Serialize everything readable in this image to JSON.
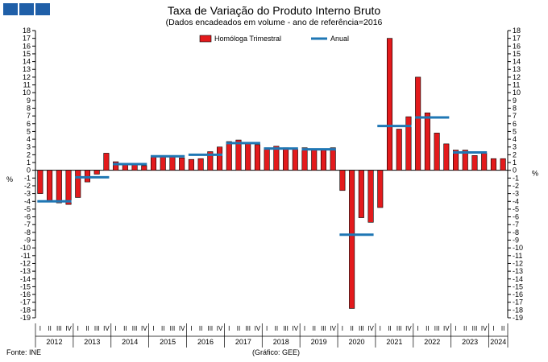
{
  "header": {
    "title": "Taxa de Variação do Produto Interno Bruto",
    "subtitle": "(Dados encadeados em volume - ano de referência=2016"
  },
  "footer": {
    "source": "Fonte: INE",
    "credit": "(Gráfico: GEE)"
  },
  "chart_data": {
    "type": "bar",
    "ylabel_left": "%",
    "ylabel_right": "%",
    "ylim": [
      -19,
      18
    ],
    "yticks": [
      18,
      17,
      16,
      15,
      14,
      13,
      12,
      11,
      10,
      9,
      8,
      7,
      6,
      5,
      4,
      3,
      2,
      1,
      0,
      -1,
      -2,
      -3,
      -4,
      -5,
      -6,
      -7,
      -8,
      -9,
      -10,
      -11,
      -12,
      -13,
      -14,
      -15,
      -16,
      -17,
      -18,
      -19
    ],
    "grid": false,
    "legend_position": "top-center",
    "colors": {
      "bar": "#e31a1c",
      "bar_edge": "#000000",
      "annual": "#1f77b4"
    },
    "quarter_labels": [
      "I",
      "II",
      "III",
      "IV"
    ],
    "years": [
      "2012",
      "2013",
      "2014",
      "2015",
      "2016",
      "2017",
      "2018",
      "2019",
      "2020",
      "2021",
      "2022",
      "2023",
      "2024"
    ],
    "series": [
      {
        "name": "Homóloga Trimestral",
        "kind": "bar",
        "values": [
          -3.0,
          -3.9,
          -4.2,
          -4.4,
          -3.5,
          -1.5,
          -0.5,
          2.2,
          1.1,
          0.9,
          0.9,
          0.6,
          1.9,
          1.9,
          1.9,
          1.6,
          1.4,
          1.5,
          2.4,
          3.0,
          3.7,
          3.9,
          3.5,
          3.3,
          2.9,
          3.1,
          2.9,
          2.7,
          2.9,
          2.7,
          2.6,
          2.9,
          -2.6,
          -17.8,
          -6.1,
          -6.7,
          -4.8,
          17.0,
          5.3,
          6.9,
          12.0,
          7.4,
          4.8,
          3.4,
          2.6,
          2.6,
          1.9,
          2.2,
          1.5,
          1.5
        ]
      },
      {
        "name": "Anual",
        "kind": "step",
        "values": [
          -4.0,
          -0.9,
          0.8,
          1.8,
          2.0,
          3.5,
          2.8,
          2.7,
          -8.3,
          5.7,
          6.8,
          2.3
        ]
      }
    ]
  }
}
